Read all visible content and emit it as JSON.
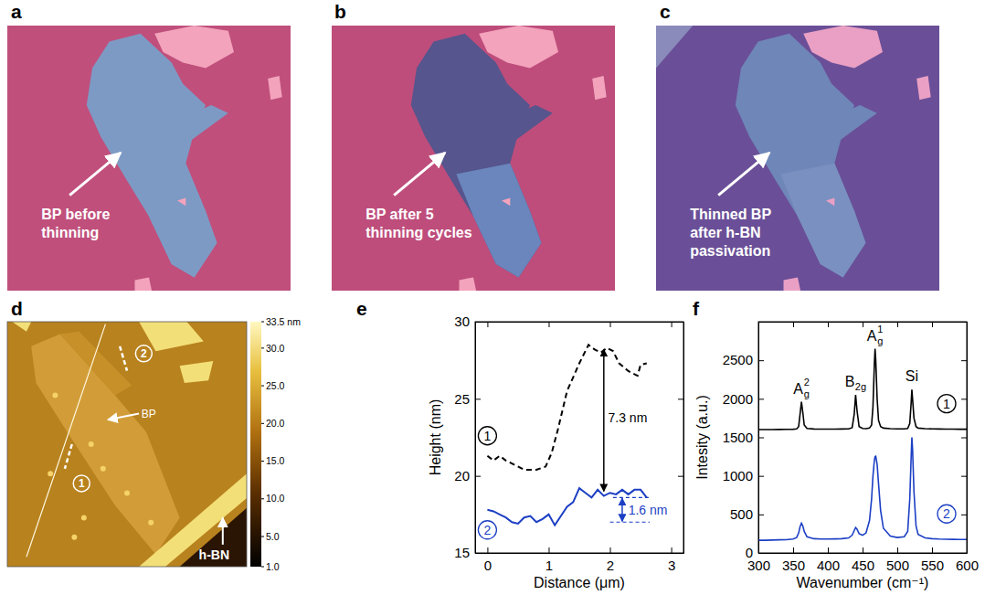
{
  "chart_data": [
    {
      "type": "image",
      "panel": "a",
      "annotation": [
        "BP before",
        "thinning"
      ]
    },
    {
      "type": "image",
      "panel": "b",
      "annotation": [
        "BP after 5",
        "thinning cycles"
      ]
    },
    {
      "type": "image",
      "panel": "c",
      "annotation": [
        "Thinned BP",
        "after h-BN",
        "passivation"
      ]
    },
    {
      "type": "afm_image",
      "panel": "d",
      "annotations": [
        "BP",
        "h-BN",
        "1",
        "2"
      ],
      "colorbar": {
        "range": [
          1.0,
          33.5
        ],
        "ticks": [
          {
            "value": 33.5,
            "label": "33.5 nm"
          },
          {
            "value": 30,
            "label": "30.0"
          },
          {
            "value": 25,
            "label": "25.0"
          },
          {
            "value": 20,
            "label": "20.0"
          },
          {
            "value": 15,
            "label": "15.0"
          },
          {
            "value": 10,
            "label": "10.0"
          },
          {
            "value": 5,
            "label": "5.0"
          },
          {
            "value": 1,
            "label": "1.0"
          }
        ]
      }
    },
    {
      "type": "line",
      "panel": "e",
      "xlabel": "Distance (μm)",
      "ylabel": "Height (nm)",
      "xlim": [
        -0.2,
        3.2
      ],
      "xticks": [
        0,
        1,
        2,
        3
      ],
      "ylim": [
        15,
        30
      ],
      "yticks": [
        15,
        20,
        25,
        30
      ],
      "annotations": [
        "7.3 nm",
        "1.6 nm"
      ],
      "series": [
        {
          "name": "1",
          "color": "#000000",
          "line_style": "dashed",
          "x": [
            0,
            0.1,
            0.2,
            0.3,
            0.45,
            0.6,
            0.8,
            0.95,
            1.05,
            1.15,
            1.3,
            1.5,
            1.65,
            1.75,
            1.85,
            1.95,
            2.05,
            2.15,
            2.3,
            2.45,
            2.5,
            2.6
          ],
          "values": [
            21.3,
            21.0,
            21.3,
            21.0,
            20.7,
            20.4,
            20.4,
            20.6,
            21.5,
            23.0,
            25.5,
            27.3,
            28.5,
            28.2,
            28.0,
            28.3,
            28.1,
            27.3,
            26.8,
            26.5,
            27.2,
            27.3
          ]
        },
        {
          "name": "2",
          "color": "#1c3fc4",
          "line_style": "solid",
          "x": [
            0,
            0.1,
            0.2,
            0.3,
            0.4,
            0.5,
            0.6,
            0.7,
            0.8,
            0.9,
            1.0,
            1.1,
            1.2,
            1.3,
            1.4,
            1.5,
            1.6,
            1.7,
            1.8,
            1.9,
            2.0,
            2.1,
            2.2,
            2.3,
            2.4,
            2.5,
            2.6
          ],
          "values": [
            17.8,
            17.7,
            17.5,
            17.3,
            17.0,
            16.9,
            17.3,
            17.4,
            17.0,
            17.2,
            17.5,
            16.8,
            17.4,
            18.0,
            18.3,
            19.2,
            18.9,
            18.6,
            19.1,
            18.7,
            18.9,
            18.8,
            19.1,
            18.8,
            19.1,
            19.1,
            18.6
          ]
        }
      ]
    },
    {
      "type": "line",
      "panel": "f",
      "xlabel": "Wavenumber (cm⁻¹)",
      "ylabel": "Intesity (a.u.)",
      "xlim": [
        300,
        600
      ],
      "xticks": [
        300,
        350,
        400,
        450,
        500,
        550,
        600
      ],
      "ylim": [
        0,
        3000
      ],
      "yticks": [
        0,
        500,
        1000,
        1500,
        2000,
        2500
      ],
      "peaks": [
        {
          "x": 362,
          "label": {
            "text": "A",
            "sub": "g",
            "sup": "2"
          }
        },
        {
          "x": 440,
          "label": {
            "text": "B",
            "sub": "2g"
          }
        },
        {
          "x": 468,
          "label": {
            "text": "A",
            "sub": "g",
            "sup": "1"
          }
        },
        {
          "x": 521,
          "label": {
            "text": "Si"
          }
        }
      ],
      "series": [
        {
          "name": "1",
          "color": "#000000",
          "line_style": "solid",
          "x": [
            300,
            310,
            320,
            330,
            340,
            350,
            355,
            358,
            360,
            362,
            364,
            366,
            370,
            380,
            390,
            400,
            410,
            420,
            430,
            435,
            438,
            440,
            442,
            445,
            450,
            455,
            460,
            463,
            465,
            467,
            468,
            469,
            471,
            473,
            476,
            480,
            490,
            500,
            510,
            515,
            518,
            520,
            521,
            522,
            524,
            527,
            530,
            540,
            550,
            560,
            570,
            580,
            590,
            600
          ],
          "values": [
            1600,
            1600,
            1600,
            1602,
            1603,
            1605,
            1610,
            1640,
            1800,
            1960,
            1820,
            1660,
            1615,
            1608,
            1606,
            1606,
            1607,
            1608,
            1610,
            1625,
            1800,
            2050,
            1850,
            1640,
            1615,
            1612,
            1620,
            1660,
            1900,
            2450,
            2650,
            2500,
            2000,
            1720,
            1640,
            1620,
            1612,
            1610,
            1610,
            1615,
            1680,
            1950,
            2120,
            2000,
            1750,
            1640,
            1620,
            1612,
            1610,
            1608,
            1607,
            1606,
            1605,
            1605
          ]
        },
        {
          "name": "2",
          "color": "#1c3fc4",
          "line_style": "solid",
          "x": [
            300,
            310,
            320,
            330,
            340,
            350,
            355,
            358,
            360,
            362,
            364,
            366,
            370,
            380,
            390,
            400,
            410,
            420,
            430,
            435,
            438,
            440,
            442,
            445,
            450,
            455,
            460,
            463,
            465,
            467,
            468,
            469,
            471,
            473,
            476,
            480,
            490,
            500,
            510,
            515,
            518,
            520,
            521,
            522,
            524,
            527,
            530,
            540,
            550,
            560,
            570,
            580,
            590,
            600
          ],
          "values": [
            165,
            165,
            168,
            170,
            172,
            180,
            200,
            260,
            340,
            385,
            350,
            280,
            210,
            185,
            180,
            180,
            182,
            185,
            195,
            230,
            290,
            330,
            310,
            250,
            230,
            260,
            420,
            700,
            1000,
            1200,
            1250,
            1255,
            1150,
            900,
            550,
            320,
            220,
            200,
            210,
            280,
            700,
            1250,
            1500,
            1350,
            800,
            350,
            240,
            195,
            185,
            180,
            178,
            176,
            175,
            175
          ]
        }
      ]
    }
  ]
}
